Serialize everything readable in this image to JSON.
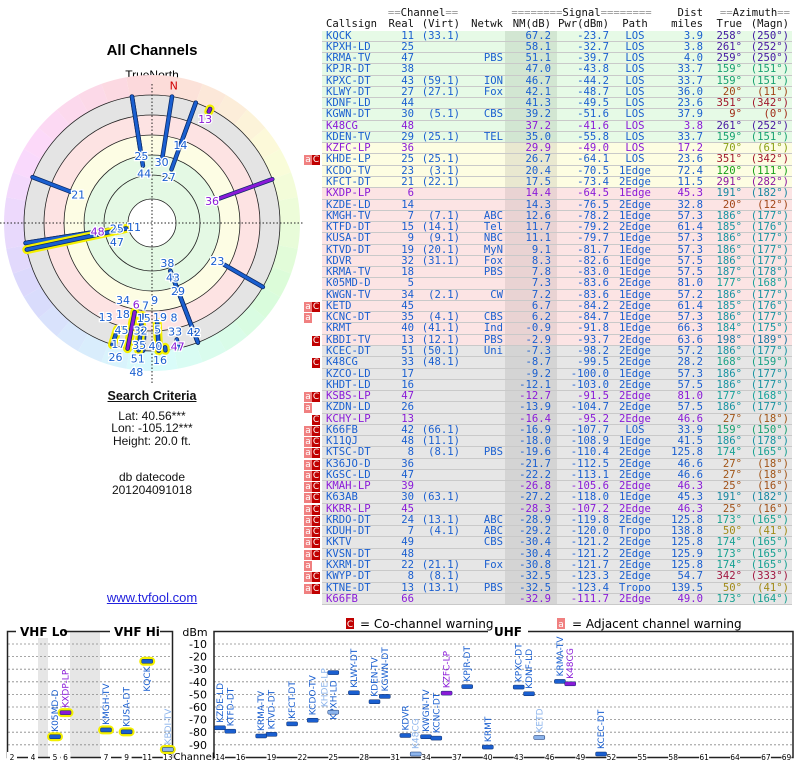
{
  "polar": {
    "title": "All Channels",
    "true_north_label": "TrueNorth",
    "north_marker": "N"
  },
  "criteria": {
    "heading": "Search Criteria",
    "lat": "Lat: 40.56***",
    "lon": "Lon: -105.12***",
    "height": "Height: 20.0 ft.",
    "datecode_label": "db datecode",
    "datecode": "201204091018"
  },
  "site_link": "www.tvfool.com",
  "table_header": {
    "channel_group": "Channel",
    "signal_group": "Signal",
    "dist_top": "Dist",
    "azimuth_group": "Azimuth",
    "callsign": "Callsign",
    "real": "Real",
    "virt": "(Virt)",
    "netwk": "Netwk",
    "nm": "NM(dB)",
    "pwr": "Pwr(dBm)",
    "path": "Path",
    "miles": "miles",
    "true": "True",
    "magn": "(Magn)"
  },
  "flag_letters": {
    "adjacent": "a",
    "cochannel": "C"
  },
  "stations": [
    {
      "f": "",
      "call": "KQCK",
      "real": "11",
      "virt": "(33.1)",
      "net": "",
      "nm": "67.2",
      "pwr": "-23.7",
      "path": "LOS",
      "dist": "3.9",
      "tru": "258°",
      "mag": "(250°)"
    },
    {
      "f": "",
      "call": "KPXH-LD",
      "real": "25",
      "virt": "",
      "net": "",
      "nm": "58.1",
      "pwr": "-32.7",
      "path": "LOS",
      "dist": "3.8",
      "tru": "261°",
      "mag": "(252°)"
    },
    {
      "f": "",
      "call": "KRMA-TV",
      "real": "47",
      "virt": "",
      "net": "PBS",
      "nm": "51.1",
      "pwr": "-39.7",
      "path": "LOS",
      "dist": "4.0",
      "tru": "259°",
      "mag": "(250°)"
    },
    {
      "f": "",
      "call": "KPJR-DT",
      "real": "38",
      "virt": "",
      "net": "",
      "nm": "47.0",
      "pwr": "-43.8",
      "path": "LOS",
      "dist": "33.7",
      "tru": "159°",
      "mag": "(151°)"
    },
    {
      "f": "",
      "call": "KPXC-DT",
      "real": "43",
      "virt": "(59.1)",
      "net": "ION",
      "nm": "46.7",
      "pwr": "-44.2",
      "path": "LOS",
      "dist": "33.7",
      "tru": "159°",
      "mag": "(151°)"
    },
    {
      "f": "",
      "call": "KLWY-DT",
      "real": "27",
      "virt": "(27.1)",
      "net": "Fox",
      "nm": "42.1",
      "pwr": "-48.7",
      "path": "LOS",
      "dist": "36.0",
      "tru": "20°",
      "mag": "(11°)"
    },
    {
      "f": "",
      "call": "KDNF-LD",
      "real": "44",
      "virt": "",
      "net": "",
      "nm": "41.3",
      "pwr": "-49.5",
      "path": "LOS",
      "dist": "23.6",
      "tru": "351°",
      "mag": "(342°)"
    },
    {
      "f": "",
      "call": "KGWN-DT",
      "real": "30",
      "virt": "(5.1)",
      "net": "CBS",
      "nm": "39.2",
      "pwr": "-51.6",
      "path": "LOS",
      "dist": "37.9",
      "tru": "9°",
      "mag": "(0°)"
    },
    {
      "f": "",
      "call": "K48CG",
      "real": "48",
      "virt": "",
      "net": "",
      "nm": "37.2",
      "pwr": "-41.6",
      "path": "LOS",
      "dist": "3.8",
      "tru": "261°",
      "mag": "(252°)",
      "lp": true
    },
    {
      "f": "",
      "call": "KDEN-TV",
      "real": "29",
      "virt": "(25.1)",
      "net": "TEL",
      "nm": "35.0",
      "pwr": "-55.8",
      "path": "LOS",
      "dist": "33.7",
      "tru": "159°",
      "mag": "(151°)"
    },
    {
      "f": "",
      "call": "KZFC-LP",
      "real": "36",
      "virt": "",
      "net": "",
      "nm": "29.9",
      "pwr": "-49.0",
      "path": "LOS",
      "dist": "17.2",
      "tru": "70°",
      "mag": "(61°)",
      "lp": true
    },
    {
      "f": "aC",
      "call": "KHDE-LP",
      "real": "25",
      "virt": "(25.1)",
      "net": "",
      "nm": "26.7",
      "pwr": "-64.1",
      "path": "LOS",
      "dist": "23.6",
      "tru": "351°",
      "mag": "(342°)"
    },
    {
      "f": "",
      "call": "KCDO-TV",
      "real": "23",
      "virt": "(3.1)",
      "net": "",
      "nm": "20.4",
      "pwr": "-70.5",
      "path": "1Edge",
      "dist": "72.4",
      "tru": "120°",
      "mag": "(111°)"
    },
    {
      "f": "",
      "call": "KFCT-DT",
      "real": "21",
      "virt": "(22.1)",
      "net": "",
      "nm": "17.5",
      "pwr": "-73.4",
      "path": "2Edge",
      "dist": "11.5",
      "tru": "291°",
      "mag": "(282°)"
    },
    {
      "f": "",
      "call": "KXDP-LP",
      "real": "6",
      "virt": "",
      "net": "",
      "nm": "14.4",
      "pwr": "-64.5",
      "path": "1Edge",
      "dist": "45.3",
      "tru": "191°",
      "mag": "(182°)",
      "lp": true
    },
    {
      "f": "",
      "call": "KZDE-LD",
      "real": "14",
      "virt": "",
      "net": "",
      "nm": "14.3",
      "pwr": "-76.5",
      "path": "2Edge",
      "dist": "32.8",
      "tru": "20°",
      "mag": "(12°)"
    },
    {
      "f": "",
      "call": "KMGH-TV",
      "real": "7",
      "virt": "(7.1)",
      "net": "ABC",
      "nm": "12.6",
      "pwr": "-78.2",
      "path": "1Edge",
      "dist": "57.3",
      "tru": "186°",
      "mag": "(177°)"
    },
    {
      "f": "",
      "call": "KTFD-DT",
      "real": "15",
      "virt": "(14.1)",
      "net": "Tel",
      "nm": "11.7",
      "pwr": "-79.2",
      "path": "2Edge",
      "dist": "61.4",
      "tru": "185°",
      "mag": "(176°)"
    },
    {
      "f": "",
      "call": "KUSA-DT",
      "real": "9",
      "virt": "(9.1)",
      "net": "NBC",
      "nm": "11.1",
      "pwr": "-79.7",
      "path": "1Edge",
      "dist": "57.3",
      "tru": "186°",
      "mag": "(177°)"
    },
    {
      "f": "",
      "call": "KTVD-DT",
      "real": "19",
      "virt": "(20.1)",
      "net": "MyN",
      "nm": "9.1",
      "pwr": "-81.7",
      "path": "1Edge",
      "dist": "57.3",
      "tru": "186°",
      "mag": "(177°)"
    },
    {
      "f": "",
      "call": "KDVR",
      "real": "32",
      "virt": "(31.1)",
      "net": "Fox",
      "nm": "8.3",
      "pwr": "-82.6",
      "path": "1Edge",
      "dist": "57.5",
      "tru": "186°",
      "mag": "(177°)"
    },
    {
      "f": "",
      "call": "KRMA-TV",
      "real": "18",
      "virt": "",
      "net": "PBS",
      "nm": "7.8",
      "pwr": "-83.0",
      "path": "1Edge",
      "dist": "57.5",
      "tru": "187°",
      "mag": "(178°)"
    },
    {
      "f": "",
      "call": "K05MD-D",
      "real": "5",
      "virt": "",
      "net": "",
      "nm": "7.3",
      "pwr": "-83.6",
      "path": "2Edge",
      "dist": "81.0",
      "tru": "177°",
      "mag": "(168°)"
    },
    {
      "f": "",
      "call": "KWGN-TV",
      "real": "34",
      "virt": "(2.1)",
      "net": "CW",
      "nm": "7.2",
      "pwr": "-83.6",
      "path": "1Edge",
      "dist": "57.2",
      "tru": "186°",
      "mag": "(177°)"
    },
    {
      "f": "aC",
      "call": "KETD",
      "real": "45",
      "virt": "",
      "net": "",
      "nm": "6.7",
      "pwr": "-84.2",
      "path": "2Edge",
      "dist": "61.4",
      "tru": "185°",
      "mag": "(176°)"
    },
    {
      "f": "a",
      "call": "KCNC-DT",
      "real": "35",
      "virt": "(4.1)",
      "net": "CBS",
      "nm": "6.2",
      "pwr": "-84.7",
      "path": "1Edge",
      "dist": "57.3",
      "tru": "186°",
      "mag": "(177°)"
    },
    {
      "f": "",
      "call": "KRMT",
      "real": "40",
      "virt": "(41.1)",
      "net": "Ind",
      "nm": "-0.9",
      "pwr": "-91.8",
      "path": "1Edge",
      "dist": "66.3",
      "tru": "184°",
      "mag": "(175°)"
    },
    {
      "f": "C",
      "call": "KBDI-TV",
      "real": "13",
      "virt": "(12.1)",
      "net": "PBS",
      "nm": "-2.9",
      "pwr": "-93.7",
      "path": "2Edge",
      "dist": "63.6",
      "tru": "198°",
      "mag": "(189°)"
    },
    {
      "f": "",
      "call": "KCEC-DT",
      "real": "51",
      "virt": "(50.1)",
      "net": "Uni",
      "nm": "-7.3",
      "pwr": "-98.2",
      "path": "2Edge",
      "dist": "57.2",
      "tru": "186°",
      "mag": "(177°)"
    },
    {
      "f": "C",
      "call": "K48CG",
      "real": "33",
      "virt": "(48.1)",
      "net": "",
      "nm": "-8.7",
      "pwr": "-99.5",
      "path": "2Edge",
      "dist": "28.2",
      "tru": "168°",
      "mag": "(159°)"
    },
    {
      "f": "",
      "call": "KZCO-LD",
      "real": "17",
      "virt": "",
      "net": "",
      "nm": "-9.2",
      "pwr": "-100.0",
      "path": "1Edge",
      "dist": "57.3",
      "tru": "186°",
      "mag": "(177°)"
    },
    {
      "f": "",
      "call": "KHDT-LD",
      "real": "16",
      "virt": "",
      "net": "",
      "nm": "-12.1",
      "pwr": "-103.0",
      "path": "2Edge",
      "dist": "57.5",
      "tru": "186°",
      "mag": "(177°)"
    },
    {
      "f": "aC",
      "call": "KSBS-LP",
      "real": "47",
      "virt": "",
      "net": "",
      "nm": "-12.7",
      "pwr": "-91.5",
      "path": "2Edge",
      "dist": "81.0",
      "tru": "177°",
      "mag": "(168°)",
      "lp": true
    },
    {
      "f": "a",
      "call": "KZDN-LD",
      "real": "26",
      "virt": "",
      "net": "",
      "nm": "-13.9",
      "pwr": "-104.7",
      "path": "2Edge",
      "dist": "57.5",
      "tru": "186°",
      "mag": "(177°)"
    },
    {
      "f": "C",
      "call": "KCHY-LP",
      "real": "13",
      "virt": "",
      "net": "",
      "nm": "-16.4",
      "pwr": "-95.2",
      "path": "2Edge",
      "dist": "46.6",
      "tru": "27°",
      "mag": "(18°)",
      "lp": true
    },
    {
      "f": "aC",
      "call": "K66FB",
      "real": "42",
      "virt": "(66.1)",
      "net": "",
      "nm": "-16.9",
      "pwr": "-107.7",
      "path": "LOS",
      "dist": "33.9",
      "tru": "159°",
      "mag": "(150°)"
    },
    {
      "f": "aC",
      "call": "K11QJ",
      "real": "48",
      "virt": "(11.1)",
      "net": "",
      "nm": "-18.0",
      "pwr": "-108.9",
      "path": "1Edge",
      "dist": "41.5",
      "tru": "186°",
      "mag": "(178°)"
    },
    {
      "f": "aC",
      "call": "KTSC-DT",
      "real": "8",
      "virt": "(8.1)",
      "net": "PBS",
      "nm": "-19.6",
      "pwr": "-110.4",
      "path": "2Edge",
      "dist": "125.8",
      "tru": "174°",
      "mag": "(165°)"
    },
    {
      "f": "aC",
      "call": "K36JO-D",
      "real": "36",
      "virt": "",
      "net": "",
      "nm": "-21.7",
      "pwr": "-112.5",
      "path": "2Edge",
      "dist": "46.6",
      "tru": "27°",
      "mag": "(18°)"
    },
    {
      "f": "aC",
      "call": "KGSC-LD",
      "real": "47",
      "virt": "",
      "net": "",
      "nm": "-22.2",
      "pwr": "-113.1",
      "path": "2Edge",
      "dist": "46.6",
      "tru": "27°",
      "mag": "(18°)"
    },
    {
      "f": "aC",
      "call": "KMAH-LP",
      "real": "39",
      "virt": "",
      "net": "",
      "nm": "-26.8",
      "pwr": "-105.6",
      "path": "2Edge",
      "dist": "46.3",
      "tru": "25°",
      "mag": "(16°)",
      "lp": true
    },
    {
      "f": "aC",
      "call": "K63AB",
      "real": "30",
      "virt": "(63.1)",
      "net": "",
      "nm": "-27.2",
      "pwr": "-118.0",
      "path": "1Edge",
      "dist": "45.3",
      "tru": "191°",
      "mag": "(182°)"
    },
    {
      "f": "aC",
      "call": "KKRR-LP",
      "real": "45",
      "virt": "",
      "net": "",
      "nm": "-28.3",
      "pwr": "-107.2",
      "path": "2Edge",
      "dist": "46.3",
      "tru": "25°",
      "mag": "(16°)",
      "lp": true
    },
    {
      "f": "aC",
      "call": "KRDO-DT",
      "real": "24",
      "virt": "(13.1)",
      "net": "ABC",
      "nm": "-28.9",
      "pwr": "-119.8",
      "path": "2Edge",
      "dist": "125.8",
      "tru": "173°",
      "mag": "(165°)"
    },
    {
      "f": "aC",
      "call": "KDUH-DT",
      "real": "7",
      "virt": "(4.1)",
      "net": "ABC",
      "nm": "-29.2",
      "pwr": "-120.0",
      "path": "Tropo",
      "dist": "138.8",
      "tru": "50°",
      "mag": "(41°)"
    },
    {
      "f": "aC",
      "call": "KKTV",
      "real": "49",
      "virt": "",
      "net": "CBS",
      "nm": "-30.4",
      "pwr": "-121.2",
      "path": "2Edge",
      "dist": "125.8",
      "tru": "174°",
      "mag": "(165°)"
    },
    {
      "f": "aC",
      "call": "KVSN-DT",
      "real": "48",
      "virt": "",
      "net": "",
      "nm": "-30.4",
      "pwr": "-121.2",
      "path": "2Edge",
      "dist": "125.9",
      "tru": "173°",
      "mag": "(165°)"
    },
    {
      "f": "a",
      "call": "KXRM-DT",
      "real": "22",
      "virt": "(21.1)",
      "net": "Fox",
      "nm": "-30.8",
      "pwr": "-121.7",
      "path": "2Edge",
      "dist": "125.8",
      "tru": "174°",
      "mag": "(165°)"
    },
    {
      "f": "aC",
      "call": "KWYP-DT",
      "real": "8",
      "virt": "(8.1)",
      "net": "",
      "nm": "-32.5",
      "pwr": "-123.3",
      "path": "2Edge",
      "dist": "54.7",
      "tru": "342°",
      "mag": "(333°)"
    },
    {
      "f": "aC",
      "call": "KTNE-DT",
      "real": "13",
      "virt": "(13.1)",
      "net": "PBS",
      "nm": "-32.5",
      "pwr": "-123.4",
      "path": "Tropo",
      "dist": "139.5",
      "tru": "50°",
      "mag": "(41°)"
    },
    {
      "f": "",
      "call": "K66FB",
      "real": "66",
      "virt": "",
      "net": "",
      "nm": "-32.9",
      "pwr": "-111.7",
      "path": "2Edge",
      "dist": "49.0",
      "tru": "173°",
      "mag": "(164°)",
      "lp": true
    }
  ],
  "spectrum": {
    "vhf_lo_label": "VHF Lo",
    "vhf_hi_label": "VHF Hi",
    "uhf_label": "UHF",
    "unit_label": "dBm",
    "channel_label": "Channel",
    "dbm_ticks": [
      "-10",
      "-20",
      "-30",
      "-40",
      "-50",
      "-60",
      "-70",
      "-80",
      "-90"
    ],
    "legend_cochannel": "= Co-channel warning",
    "legend_adjacent": "= Adjacent channel warning",
    "ticks_lo": [
      "2",
      "4",
      "5",
      "6"
    ],
    "ticks_hi": [
      "7",
      "9",
      "11",
      "13"
    ],
    "ticks_uhf": [
      "14",
      "16",
      "19",
      "22",
      "25",
      "28",
      "31",
      "34",
      "37",
      "40",
      "43",
      "46",
      "49",
      "52",
      "55",
      "58",
      "61",
      "64",
      "67",
      "69"
    ]
  },
  "colors": {
    "station_blue": "#1a5fd0",
    "station_purple": "#8a1ad8",
    "station_faded": "#8cb4ec",
    "highlight": "#f4f000",
    "link": "#2222dd",
    "flag_a": "#f08080",
    "flag_c": "#c00000"
  }
}
